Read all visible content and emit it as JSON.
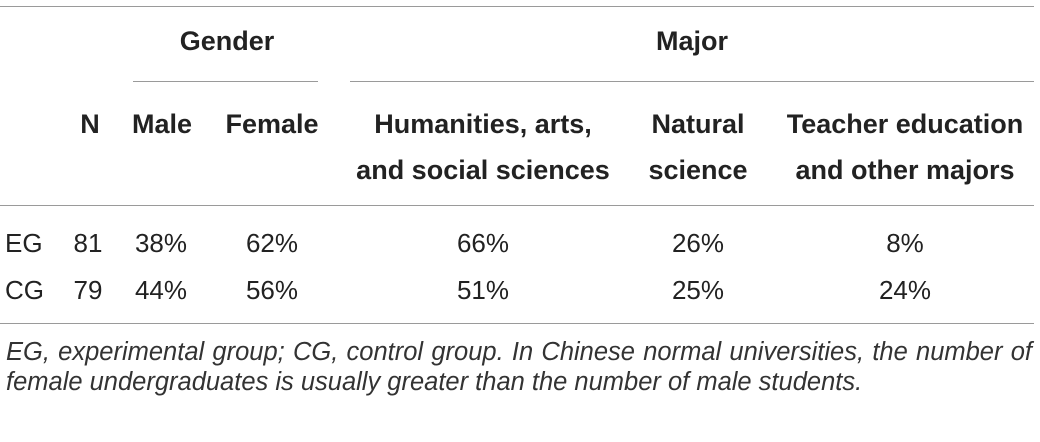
{
  "table": {
    "group_headers": {
      "gender": "Gender",
      "major": "Major"
    },
    "columns": {
      "n": "N",
      "male": "Male",
      "female": "Female",
      "humanities": [
        "Humanities, arts,",
        "and social sciences"
      ],
      "natural": [
        "Natural",
        "science"
      ],
      "teacher": [
        "Teacher education",
        "and other majors"
      ]
    },
    "rows": [
      {
        "group": "EG",
        "n": "81",
        "male": "38%",
        "female": "62%",
        "humanities": "66%",
        "natural": "26%",
        "teacher": "8%"
      },
      {
        "group": "CG",
        "n": "79",
        "male": "44%",
        "female": "56%",
        "humanities": "51%",
        "natural": "25%",
        "teacher": "24%"
      }
    ]
  },
  "footnote": "EG, experimental group; CG, control group. In Chinese normal universities, the number of female undergraduates is usually greater than the number of male students."
}
